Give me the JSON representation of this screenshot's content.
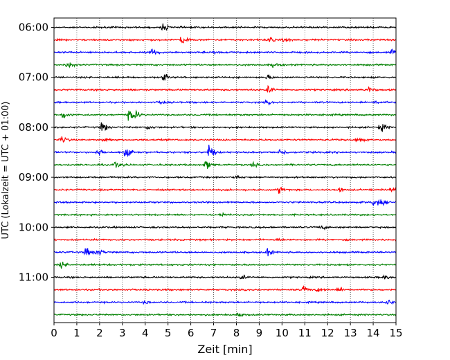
{
  "chart_data": {
    "type": "line",
    "subtype": "seismogram-helicorder",
    "xlabel": "Zeit  [min]",
    "ylabel": "UTC (Lokalzeit = UTC + 01:00)",
    "xlim": [
      0,
      15
    ],
    "x_ticks": [
      "0",
      "1",
      "2",
      "3",
      "4",
      "5",
      "6",
      "7",
      "8",
      "9",
      "10",
      "11",
      "12",
      "13",
      "14",
      "15"
    ],
    "y_ticks": [
      "06:00",
      "07:00",
      "08:00",
      "09:00",
      "10:00",
      "11:00"
    ],
    "grid": "vertical-dotted",
    "trace_colors": [
      "#000000",
      "#ff0000",
      "#0000ff",
      "#008000"
    ],
    "traces": [
      {
        "start": "06:00",
        "color": "#000000",
        "bursts": [
          [
            4.75,
            1.3
          ]
        ]
      },
      {
        "start": "06:15",
        "color": "#ff0000",
        "bursts": [
          [
            5.6,
            2.2
          ],
          [
            9.4,
            1.0
          ],
          [
            10.1,
            1.0
          ]
        ]
      },
      {
        "start": "06:30",
        "color": "#0000ff",
        "bursts": [
          [
            4.3,
            1.8
          ],
          [
            7.0,
            0.6
          ],
          [
            14.8,
            1.0
          ]
        ]
      },
      {
        "start": "06:45",
        "color": "#008000",
        "bursts": [
          [
            0.6,
            1.5
          ],
          [
            9.6,
            0.8
          ]
        ]
      },
      {
        "start": "07:00",
        "color": "#000000",
        "bursts": [
          [
            4.75,
            1.6
          ],
          [
            9.35,
            0.8
          ]
        ]
      },
      {
        "start": "07:15",
        "color": "#ff0000",
        "bursts": [
          [
            9.4,
            1.4
          ],
          [
            13.8,
            1.0
          ]
        ]
      },
      {
        "start": "07:30",
        "color": "#0000ff",
        "bursts": [
          [
            4.7,
            0.8
          ],
          [
            9.3,
            0.6
          ],
          [
            14.1,
            0.7
          ]
        ]
      },
      {
        "start": "07:45",
        "color": "#008000",
        "bursts": [
          [
            0.4,
            1.5
          ],
          [
            3.3,
            2.5
          ],
          [
            3.6,
            1.2
          ]
        ]
      },
      {
        "start": "08:00",
        "color": "#000000",
        "bursts": [
          [
            2.1,
            2.2
          ],
          [
            4.1,
            0.9
          ],
          [
            14.3,
            1.8
          ]
        ]
      },
      {
        "start": "08:15",
        "color": "#ff0000",
        "bursts": [
          [
            0.3,
            1.6
          ],
          [
            2.2,
            1.0
          ],
          [
            13.3,
            1.0
          ]
        ]
      },
      {
        "start": "08:30",
        "color": "#0000ff",
        "bursts": [
          [
            3.15,
            4.2
          ],
          [
            6.75,
            3.4
          ],
          [
            9.9,
            1.5
          ],
          [
            1.9,
            1.0
          ]
        ]
      },
      {
        "start": "08:45",
        "color": "#008000",
        "bursts": [
          [
            2.7,
            1.4
          ],
          [
            6.65,
            1.8
          ],
          [
            8.7,
            0.8
          ]
        ]
      },
      {
        "start": "09:00",
        "color": "#000000",
        "bursts": [
          [
            8.0,
            0.6
          ]
        ]
      },
      {
        "start": "09:15",
        "color": "#ff0000",
        "bursts": [
          [
            9.85,
            1.4
          ],
          [
            12.5,
            0.8
          ],
          [
            14.8,
            1.0
          ]
        ]
      },
      {
        "start": "09:30",
        "color": "#0000ff",
        "bursts": [
          [
            14.0,
            1.5
          ],
          [
            14.3,
            1.0
          ]
        ]
      },
      {
        "start": "09:45",
        "color": "#008000",
        "bursts": [
          [
            7.3,
            0.7
          ]
        ]
      },
      {
        "start": "10:00",
        "color": "#000000",
        "bursts": [
          [
            11.7,
            0.8
          ]
        ]
      },
      {
        "start": "10:15",
        "color": "#ff0000",
        "bursts": [
          [
            9.8,
            0.5
          ]
        ]
      },
      {
        "start": "10:30",
        "color": "#0000ff",
        "bursts": [
          [
            1.4,
            2.0
          ],
          [
            1.9,
            1.3
          ],
          [
            9.3,
            1.6
          ]
        ]
      },
      {
        "start": "10:45",
        "color": "#008000",
        "bursts": [
          [
            0.3,
            1.2
          ]
        ]
      },
      {
        "start": "11:00",
        "color": "#000000",
        "bursts": [
          [
            8.2,
            0.8
          ],
          [
            14.5,
            0.8
          ]
        ]
      },
      {
        "start": "11:15",
        "color": "#ff0000",
        "bursts": [
          [
            10.9,
            1.3
          ],
          [
            12.5,
            0.9
          ],
          [
            11.6,
            0.8
          ]
        ]
      },
      {
        "start": "11:30",
        "color": "#0000ff",
        "bursts": [
          [
            14.6,
            1.1
          ],
          [
            4.0,
            0.6
          ]
        ]
      },
      {
        "start": "11:45",
        "color": "#008000",
        "bursts": [
          [
            8.1,
            0.7
          ]
        ]
      }
    ]
  }
}
